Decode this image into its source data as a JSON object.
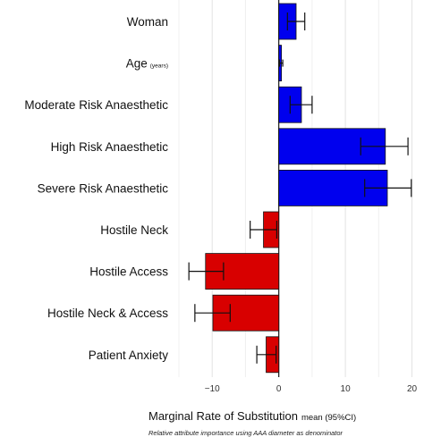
{
  "chart_data": {
    "type": "bar",
    "orientation": "horizontal",
    "categories": [
      {
        "label": "Woman",
        "sublabel": ""
      },
      {
        "label": "Age",
        "sublabel": "(years)"
      },
      {
        "label": "Moderate Risk  Anaesthetic",
        "sublabel": ""
      },
      {
        "label": "High Risk Anaesthetic",
        "sublabel": ""
      },
      {
        "label": "Severe Risk Anaesthetic",
        "sublabel": ""
      },
      {
        "label": "Hostile Neck",
        "sublabel": ""
      },
      {
        "label": "Hostile Access",
        "sublabel": ""
      },
      {
        "label": "Hostile Neck & Access",
        "sublabel": ""
      },
      {
        "label": "Patient Anxiety",
        "sublabel": ""
      }
    ],
    "values": [
      2.6,
      0.4,
      3.4,
      16.0,
      16.3,
      -2.3,
      -11.0,
      -9.9,
      -1.9
    ],
    "ci_low": [
      1.3,
      0.1,
      1.7,
      12.3,
      12.9,
      -4.3,
      -13.5,
      -12.6,
      -3.3
    ],
    "ci_high": [
      3.9,
      0.6,
      5.0,
      19.4,
      19.9,
      -0.3,
      -8.3,
      -7.3,
      -0.4
    ],
    "bar_colors": [
      "#0000ee",
      "#0000ee",
      "#0000ee",
      "#0000ee",
      "#0000ee",
      "#d80000",
      "#d80000",
      "#d80000",
      "#d80000"
    ],
    "xlim": [
      -15,
      21
    ],
    "xticks": [
      -10,
      0,
      10,
      20
    ],
    "xtick_labels": [
      "−10",
      "0",
      "10",
      "20"
    ],
    "xlabel": "Marginal Rate of Substitution",
    "xlabel_suffix": "mean (95%CI)",
    "caption": "Relative attribute importance using AAA diameter as denominator",
    "ylabel": "",
    "grid": true
  }
}
